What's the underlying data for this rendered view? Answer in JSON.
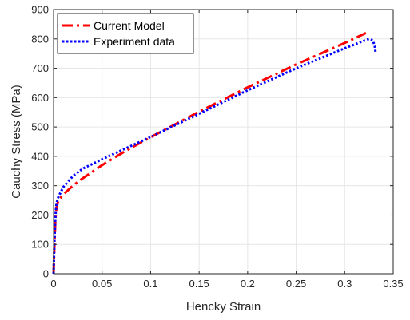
{
  "chart_data": {
    "type": "line",
    "xlabel": "Hencky Strain",
    "ylabel": "Cauchy Stress (MPa)",
    "xlim": [
      0,
      0.35
    ],
    "ylim": [
      0,
      900
    ],
    "xticks": [
      0,
      0.05,
      0.1,
      0.15,
      0.2,
      0.25,
      0.3,
      0.35
    ],
    "xtick_labels": [
      "0",
      "0.05",
      "0.1",
      "0.15",
      "0.2",
      "0.25",
      "0.3",
      "0.35"
    ],
    "yticks": [
      0,
      100,
      200,
      300,
      400,
      500,
      600,
      700,
      800,
      900
    ],
    "ytick_labels": [
      "0",
      "100",
      "200",
      "300",
      "400",
      "500",
      "600",
      "700",
      "800",
      "900"
    ],
    "grid": true,
    "legend_position": "top-left",
    "series": [
      {
        "name": "Current Model",
        "color": "#ff0000",
        "style": "dash-dot",
        "x": [
          0,
          0.001,
          0.002,
          0.003,
          0.005,
          0.01,
          0.02,
          0.03,
          0.05,
          0.075,
          0.1,
          0.15,
          0.2,
          0.25,
          0.3,
          0.322
        ],
        "y": [
          0,
          110,
          190,
          225,
          250,
          270,
          300,
          325,
          370,
          420,
          465,
          552,
          635,
          713,
          786,
          820
        ]
      },
      {
        "name": "Experiment data",
        "color": "#0000ff",
        "style": "dotted",
        "x": [
          0,
          0.001,
          0.002,
          0.003,
          0.005,
          0.01,
          0.02,
          0.03,
          0.05,
          0.075,
          0.1,
          0.15,
          0.2,
          0.25,
          0.3,
          0.325,
          0.329,
          0.331,
          0.332
        ],
        "y": [
          0,
          120,
          200,
          240,
          262,
          295,
          333,
          358,
          390,
          428,
          466,
          545,
          625,
          700,
          768,
          800,
          795,
          775,
          750
        ]
      }
    ]
  }
}
